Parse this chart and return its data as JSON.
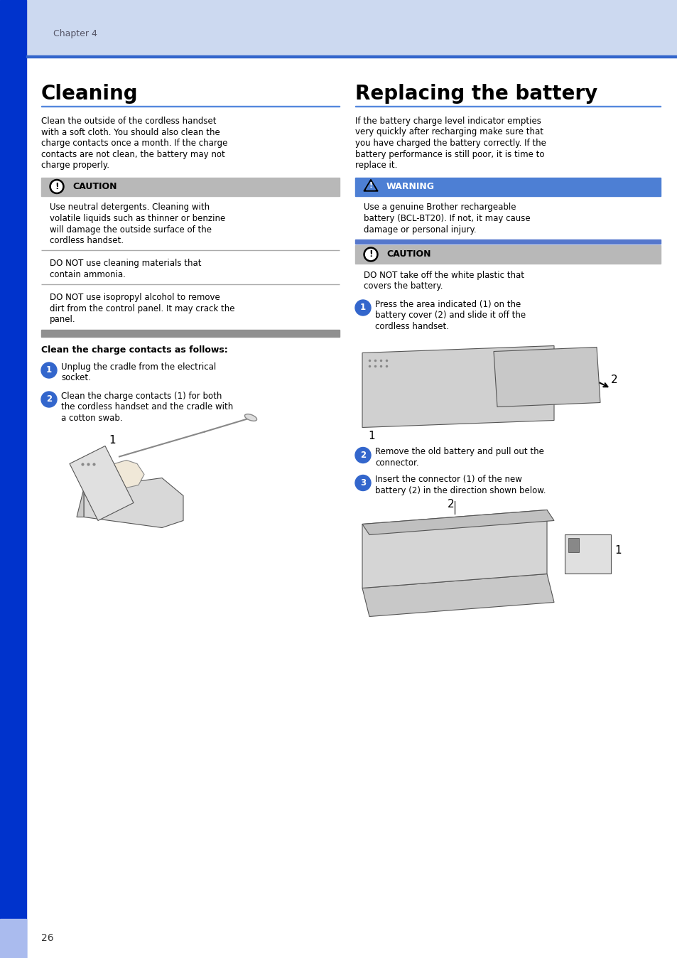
{
  "page_bg": "#ffffff",
  "header_bg": "#ccd9f0",
  "sidebar_color": "#0033cc",
  "sidebar_bottom_color": "#aabbee",
  "header_line_color": "#3366cc",
  "chapter_text": "Chapter 4",
  "chapter_text_color": "#555566",
  "page_number": "26",
  "cleaning_title": "Cleaning",
  "replacing_title": "Replacing the battery",
  "cleaning_intro": [
    "Clean the outside of the cordless handset",
    "with a soft cloth. You should also clean the",
    "charge contacts once a month. If the charge",
    "contacts are not clean, the battery may not",
    "charge properly."
  ],
  "caution_bg": "#b8b8b8",
  "caution_title": "CAUTION",
  "caution_text1": [
    "Use neutral detergents. Cleaning with",
    "volatile liquids such as thinner or benzine",
    "will damage the outside surface of the",
    "cordless handset."
  ],
  "caution_text2": [
    "DO NOT use cleaning materials that",
    "contain ammonia."
  ],
  "caution_text3": [
    "DO NOT use isopropyl alcohol to remove",
    "dirt from the control panel. It may crack the",
    "panel."
  ],
  "clean_contacts_title": "Clean the charge contacts as follows:",
  "step1_cleaning": [
    "Unplug the cradle from the electrical",
    "socket."
  ],
  "step2_cleaning": [
    "Clean the charge contacts (1) for both",
    "the cordless handset and the cradle with",
    "a cotton swab."
  ],
  "replacing_intro": [
    "If the battery charge level indicator empties",
    "very quickly after recharging make sure that",
    "you have charged the battery correctly. If the",
    "battery performance is still poor, it is time to",
    "replace it."
  ],
  "warning_bg": "#4d7fd4",
  "warning_title": "WARNING",
  "warning_text": [
    "Use a genuine Brother rechargeable",
    "battery (BCL-BT20). If not, it may cause",
    "damage or personal injury."
  ],
  "caution2_title": "CAUTION",
  "caution2_text": [
    "DO NOT take off the white plastic that",
    "covers the battery."
  ],
  "r_step1": [
    "Press the area indicated (1) on the",
    "battery cover (2) and slide it off the",
    "cordless handset."
  ],
  "r_step2": [
    "Remove the old battery and pull out the",
    "connector."
  ],
  "r_step3": [
    "Insert the connector (1) of the new",
    "battery (2) in the direction shown below."
  ],
  "title_color": "#000000",
  "body_color": "#000000",
  "step_circle_color": "#3366cc",
  "line_color": "#aaaaaa",
  "sep_bar_color": "#909090",
  "title_underline_color": "#5588dd"
}
